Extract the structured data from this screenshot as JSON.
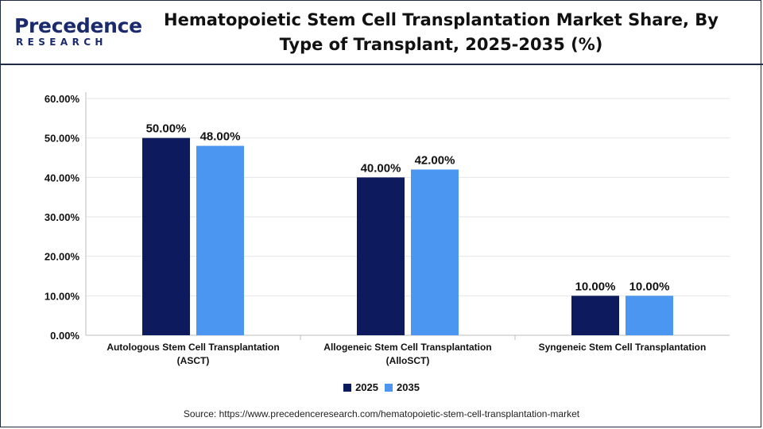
{
  "brand": {
    "name_top": "Precedence",
    "name_bottom": "RESEARCH",
    "color": "#1a2a6c"
  },
  "header": {
    "title_line1": "Hematopoietic Stem Cell Transplantation Market Share, By",
    "title_line2": "Type of Transplant, 2025-2035 (%)"
  },
  "footer": {
    "source": "Source: https://www.precedenceresearch.com/hematopoietic-stem-cell-transplantation-market"
  },
  "chart_data": {
    "type": "bar",
    "title": "Hematopoietic Stem Cell Transplantation Market Share, By Type of Transplant, 2025-2035 (%)",
    "categories": [
      [
        "Autologous Stem Cell Transplantation",
        "(ASCT)"
      ],
      [
        "Allogeneic Stem Cell Transplantation",
        "(AlloSCT)"
      ],
      [
        "Syngeneic Stem Cell Transplantation"
      ]
    ],
    "series": [
      {
        "name": "2025",
        "values": [
          50,
          40,
          10
        ],
        "labels": [
          "50.00%",
          "40.00%",
          "10.00%"
        ],
        "color": "#0d1b5e"
      },
      {
        "name": "2035",
        "values": [
          48,
          42,
          10
        ],
        "labels": [
          "48.00%",
          "42.00%",
          "10.00%"
        ],
        "color": "#4a96f0"
      }
    ],
    "yticks": [
      "0.00%",
      "10.00%",
      "20.00%",
      "30.00%",
      "40.00%",
      "50.00%",
      "60.00%"
    ],
    "ylim": [
      0,
      60
    ],
    "grid": true,
    "legend_position": "bottom"
  }
}
